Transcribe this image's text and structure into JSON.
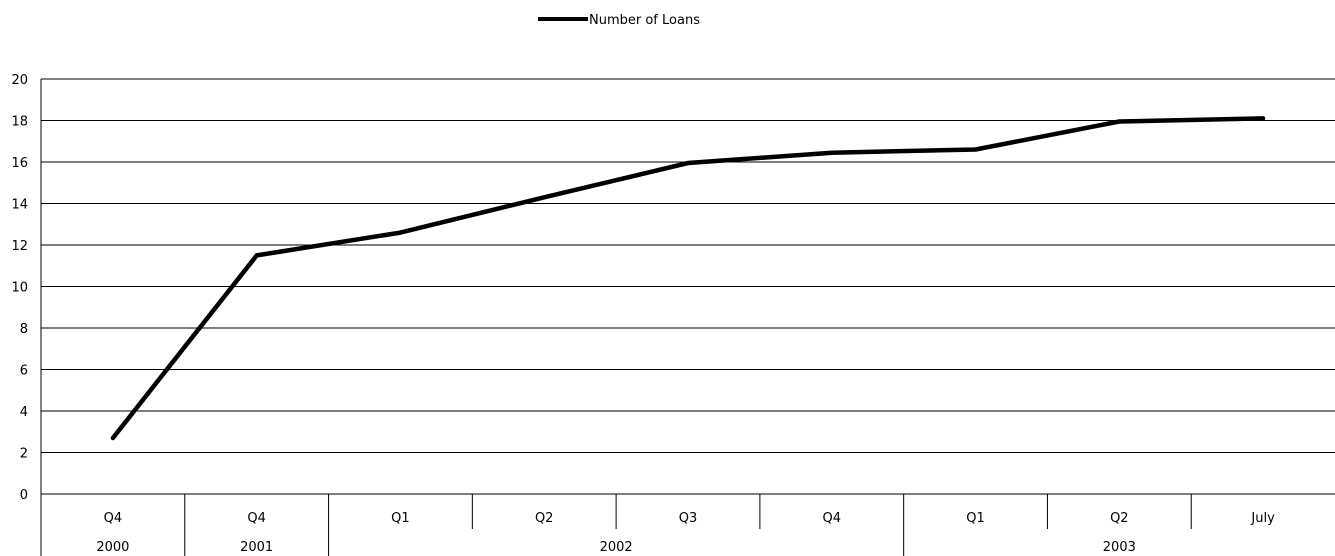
{
  "chart_data": {
    "type": "line",
    "legend": {
      "label": "Number of Loans",
      "placement": "top-center"
    },
    "categories": [
      "Q4",
      "Q4",
      "Q1",
      "Q2",
      "Q3",
      "Q4",
      "Q1",
      "Q2",
      "July"
    ],
    "year_groups": [
      {
        "label": "2000",
        "span": 1
      },
      {
        "label": "2001",
        "span": 1
      },
      {
        "label": "2002",
        "span": 4
      },
      {
        "label": "2003",
        "span": 3
      }
    ],
    "series": [
      {
        "name": "Number of Loans",
        "values": [
          2.7,
          11.5,
          12.6,
          14.3,
          15.95,
          16.45,
          16.6,
          17.95,
          18.1
        ]
      }
    ],
    "y_ticks": [
      "0",
      "2",
      "4",
      "6",
      "8",
      "10",
      "12",
      "14",
      "16",
      "18",
      "20"
    ],
    "ylim": [
      0,
      20
    ],
    "grid": "horizontal",
    "line_color": "#000000"
  }
}
